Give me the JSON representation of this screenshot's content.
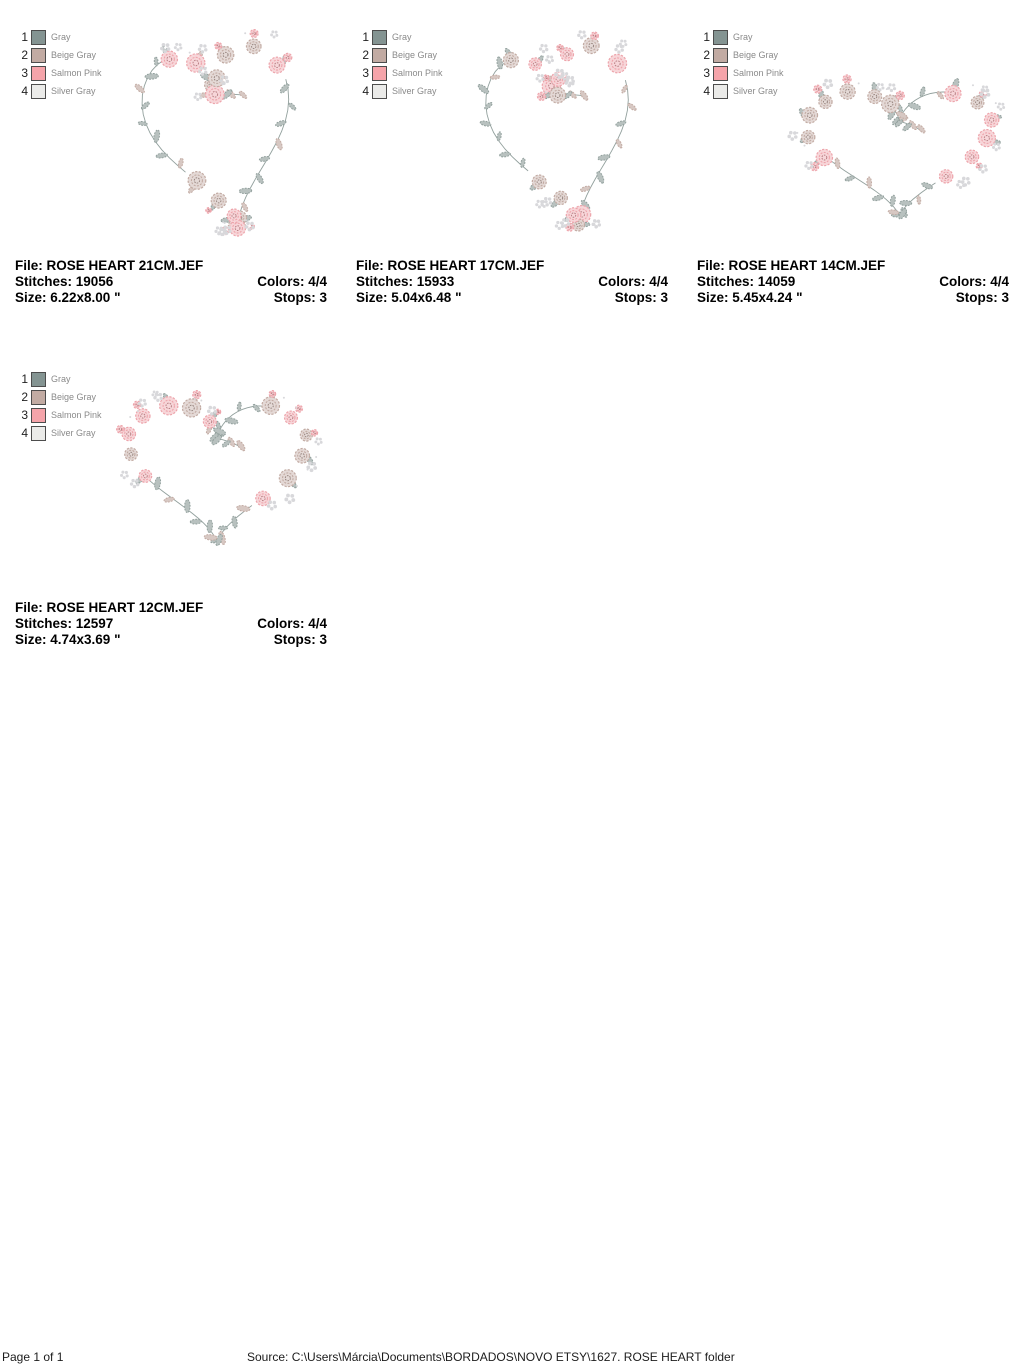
{
  "thread_colors": [
    {
      "number": "1",
      "name": "Gray",
      "hex": "#849492"
    },
    {
      "number": "2",
      "name": "Beige Gray",
      "hex": "#c2aba3"
    },
    {
      "number": "3",
      "name": "Salmon Pink",
      "hex": "#f5a4aa"
    },
    {
      "number": "4",
      "name": "Silver Gray",
      "hex": "#ebebe9"
    }
  ],
  "accent_colors": {
    "leaf_gray": "#92a09d",
    "rose_pink": "#eda4ab",
    "rose_beige": "#c2aba3",
    "sprinkle_silver": "#d8d8db"
  },
  "designs": [
    {
      "file": "File: ROSE HEART 21CM.JEF",
      "stitches": "Stitches: 19056",
      "size": "Size: 6.22x8.00 \"",
      "colors": "Colors: 4/4",
      "stops": "Stops: 3"
    },
    {
      "file": "File: ROSE HEART 17CM.JEF",
      "stitches": "Stitches: 15933",
      "size": "Size: 5.04x6.48 \"",
      "colors": "Colors: 4/4",
      "stops": "Stops: 3"
    },
    {
      "file": "File: ROSE HEART 14CM.JEF",
      "stitches": "Stitches: 14059",
      "size": "Size: 5.45x4.24 \"",
      "colors": "Colors: 4/4",
      "stops": "Stops: 3"
    },
    {
      "file": "File: ROSE HEART 12CM.JEF",
      "stitches": "Stitches: 12597",
      "size": "Size: 4.74x3.69 \"",
      "colors": "Colors: 4/4",
      "stops": "Stops: 3"
    }
  ],
  "footer": {
    "page": "Page 1 of 1",
    "source": "Source: C:\\Users\\Márcia\\Documents\\BORDADOS\\NOVO ETSY\\1627. ROSE HEART folder"
  }
}
